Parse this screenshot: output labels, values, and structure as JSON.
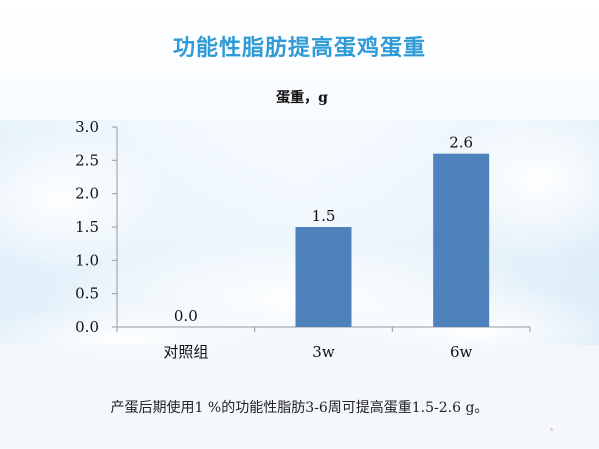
{
  "slide": {
    "title": "功能性脂肪提高蛋鸡蛋重",
    "caption": "产蛋后期使用1 %的功能性脂肪3-6周可提高蛋重1.5-2.6 g。"
  },
  "colors": {
    "title": "#2e9ad6",
    "bar": "#4f81bd",
    "axis": "#999999"
  },
  "chart_data": {
    "type": "bar",
    "title": "蛋重，g",
    "categories": [
      "对照组",
      "3w",
      "6w"
    ],
    "values": [
      0.0,
      1.5,
      2.6
    ],
    "data_labels": [
      "0.0",
      "1.5",
      "2.6"
    ],
    "yticks": [
      "0.0",
      "0.5",
      "1.0",
      "1.5",
      "2.0",
      "2.5",
      "3.0"
    ],
    "ylim": [
      0,
      3.0
    ],
    "grid": false,
    "legend": "none"
  }
}
